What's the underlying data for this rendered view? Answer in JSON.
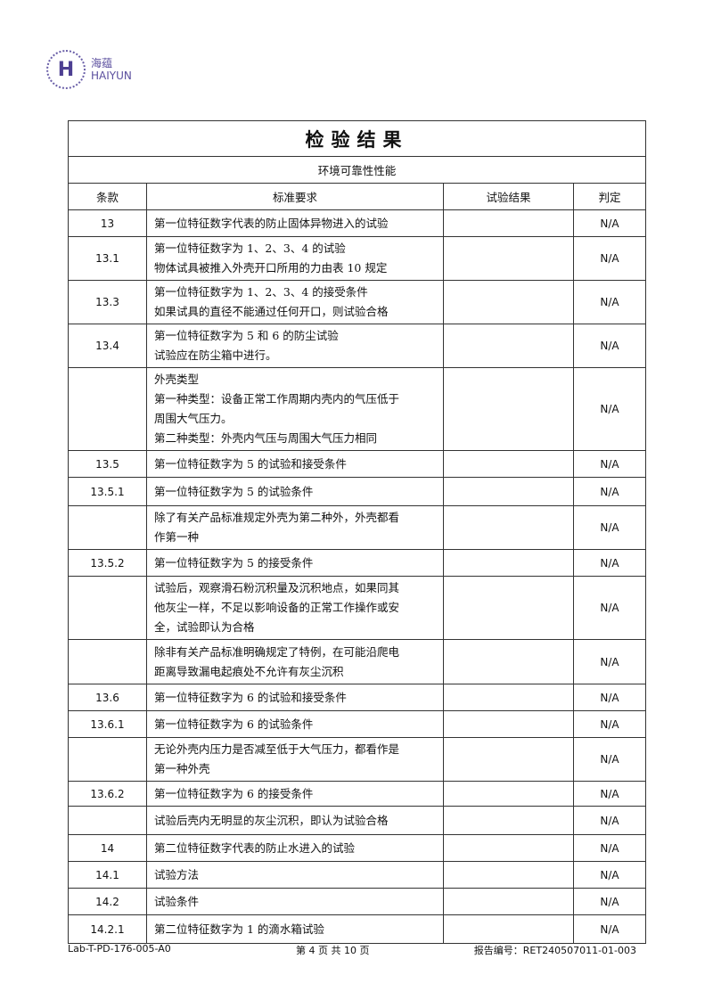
{
  "logo": {
    "cn": "海蕴",
    "en": "HAIYUN"
  },
  "title": "检验结果",
  "section": "环境可靠性性能",
  "headers": [
    "条款",
    "标准要求",
    "试验结果",
    "判定"
  ],
  "rows": [
    {
      "clause": "13",
      "text": "第一位特征数字代表的防止固体异物进入的试验",
      "result": "",
      "verdict": "N/A"
    },
    {
      "clause": "13.1",
      "text": "第一位特征数字为 1、2、3、4 的试验\n物体试具被推入外壳开口所用的力由表 10 规定",
      "result": "",
      "verdict": "N/A"
    },
    {
      "clause": "13.3",
      "text": "第一位特征数字为 1、2、3、4 的接受条件\n如果试具的直径不能通过任何开口，则试验合格",
      "result": "",
      "verdict": "N/A"
    },
    {
      "clause": "13.4",
      "text": "第一位特征数字为 5 和 6 的防尘试验\n试验应在防尘箱中进行。",
      "result": "",
      "verdict": "N/A"
    },
    {
      "clause": "",
      "text": "外壳类型\n第一种类型：设备正常工作周期内壳内的气压低于\n周围大气压力。\n第二种类型：外壳内气压与周围大气压力相同",
      "result": "",
      "verdict": "N/A"
    },
    {
      "clause": "13.5",
      "text": "第一位特征数字为 5 的试验和接受条件",
      "result": "",
      "verdict": "N/A"
    },
    {
      "clause": "13.5.1",
      "text": "第一位特征数字为 5 的试验条件",
      "result": "",
      "verdict": "N/A"
    },
    {
      "clause": "",
      "text": "除了有关产品标准规定外壳为第二种外，外壳都看\n作第一种",
      "result": "",
      "verdict": "N/A"
    },
    {
      "clause": "13.5.2",
      "text": "第一位特征数字为 5 的接受条件",
      "result": "",
      "verdict": "N/A"
    },
    {
      "clause": "",
      "text": "试验后，观察滑石粉沉积量及沉积地点，如果同其\n他灰尘一样，不足以影响设备的正常工作操作或安\n全，试验即认为合格",
      "result": "",
      "verdict": "N/A"
    },
    {
      "clause": "",
      "text": "除非有关产品标准明确规定了特例，在可能沿爬电\n距离导致漏电起痕处不允许有灰尘沉积",
      "result": "",
      "verdict": "N/A"
    },
    {
      "clause": "13.6",
      "text": "第一位特征数字为 6 的试验和接受条件",
      "result": "",
      "verdict": "N/A"
    },
    {
      "clause": "13.6.1",
      "text": "第一位特征数字为 6 的试验条件",
      "result": "",
      "verdict": "N/A"
    },
    {
      "clause": "",
      "text": "无论外壳内压力是否减至低于大气压力，都看作是\n第一种外壳",
      "result": "",
      "verdict": "N/A"
    },
    {
      "clause": "13.6.2",
      "text": "第一位特征数字为 6 的接受条件",
      "result": "",
      "verdict": "N/A"
    },
    {
      "clause": "",
      "text": "试验后壳内无明显的灰尘沉积，即认为试验合格",
      "result": "",
      "verdict": "N/A"
    },
    {
      "clause": "14",
      "text": "第二位特征数字代表的防止水进入的试验",
      "result": "",
      "verdict": "N/A"
    },
    {
      "clause": "14.1",
      "text": "试验方法",
      "result": "",
      "verdict": "N/A"
    },
    {
      "clause": "14.2",
      "text": "试验条件",
      "result": "",
      "verdict": "N/A"
    },
    {
      "clause": "14.2.1",
      "text": "第二位特征数字为 1 的滴水箱试验",
      "result": "",
      "verdict": "N/A"
    }
  ],
  "footer": {
    "doc_code": "Lab-T-PD-176-005-A0",
    "page": "第 4 页   共 10 页",
    "report_no": "报告编号：RET240507011-01-003"
  }
}
